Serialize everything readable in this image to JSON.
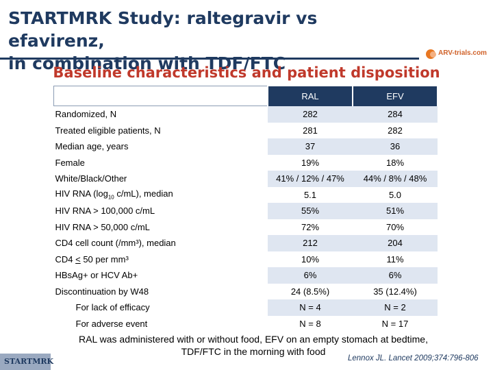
{
  "header": {
    "title_line1": "STARTMRK Study: raltegravir vs efavirenz,",
    "title_line2": "in combination with TDF/FTC",
    "logo_text": "ARV-trials.com"
  },
  "subtitle": "Baseline characteristics and patient disposition",
  "table": {
    "columns": [
      "RAL",
      "EFV"
    ],
    "rows": [
      {
        "label": "Randomized, N",
        "ral": "282",
        "efv": "284"
      },
      {
        "label": "Treated eligible patients, N",
        "ral": "281",
        "efv": "282"
      },
      {
        "label": "Median age, years",
        "ral": "37",
        "efv": "36"
      },
      {
        "label": "Female",
        "ral": "19%",
        "efv": "18%"
      },
      {
        "label": "White/Black/Other",
        "ral": "41% / 12% / 47%",
        "efv": "44% / 8% / 48%"
      },
      {
        "label": "HIV RNA (log",
        "label_sub": "10",
        "label_tail": " c/mL), median",
        "ral": "5.1",
        "efv": "5.0"
      },
      {
        "label": "HIV RNA > 100,000 c/mL",
        "ral": "55%",
        "efv": "51%"
      },
      {
        "label": "HIV RNA > 50,000 c/mL",
        "ral": "72%",
        "efv": "70%"
      },
      {
        "label": "CD4 cell count (/mm³), median",
        "ral": "212",
        "efv": "204"
      },
      {
        "label_pre": "CD4 ",
        "label_u": "<",
        "label_post": " 50 per mm³",
        "ral": "10%",
        "efv": "11%"
      },
      {
        "label": "HBsAg+ or HCV Ab+",
        "ral": "6%",
        "efv": "6%"
      },
      {
        "label": "Discontinuation by W48",
        "ral": "24 (8.5%)",
        "efv": "35 (12.4%)"
      },
      {
        "label": "For lack of efficacy",
        "ral": "N = 4",
        "efv": "N = 2"
      },
      {
        "label": "For adverse event",
        "ral": "N = 8",
        "efv": "N = 17"
      }
    ]
  },
  "footnote_line1": "RAL was administered with or without food, EFV on an empty stomach at bedtime,",
  "footnote_line2": "TDF/FTC in the morning with food",
  "badge": "STARTMRK",
  "reference": "Lennox JL. Lancet 2009;374:796-806",
  "colors": {
    "title": "#1f3a60",
    "subtitle": "#c0392b",
    "header_bg": "#1f3a60",
    "row_band": "#dfe6f1"
  }
}
